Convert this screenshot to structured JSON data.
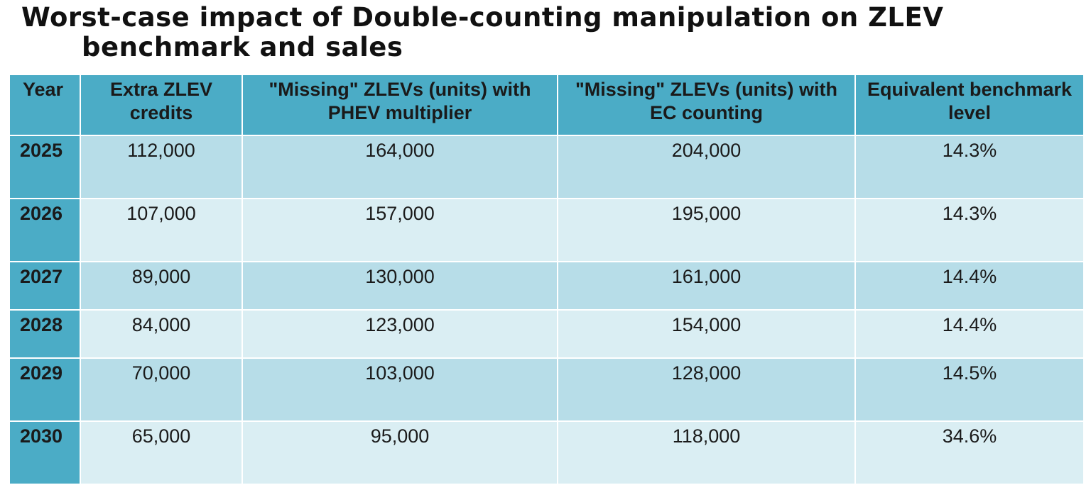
{
  "title": {
    "line1": "Worst-case impact of Double-counting manipulation on ZLEV",
    "line2": "benchmark and sales"
  },
  "chart_data": {
    "type": "table",
    "columns": [
      "Year",
      "Extra ZLEV credits",
      "\"Missing\" ZLEVs (units) with PHEV multiplier",
      "\"Missing\" ZLEVs (units) with EC counting",
      "Equivalent benchmark level"
    ],
    "rows": [
      [
        "2025",
        "112,000",
        "164,000",
        "204,000",
        "14.3%"
      ],
      [
        "2026",
        "107,000",
        "157,000",
        "195,000",
        "14.3%"
      ],
      [
        "2027",
        "89,000",
        "130,000",
        "161,000",
        "14.4%"
      ],
      [
        "2028",
        "84,000",
        "123,000",
        "154,000",
        "14.4%"
      ],
      [
        "2029",
        "70,000",
        "103,000",
        "128,000",
        "14.5%"
      ],
      [
        "2030",
        "65,000",
        "95,000",
        "118,000",
        "34.6%"
      ]
    ]
  },
  "colors": {
    "header": "#4bacc6",
    "row_dark": "#b7dde8",
    "row_light": "#daeef3"
  }
}
